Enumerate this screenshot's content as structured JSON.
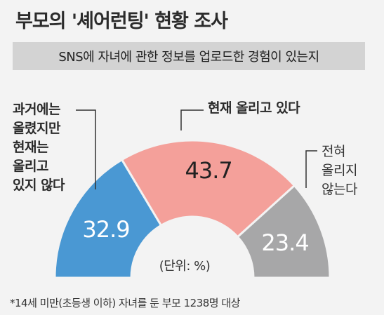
{
  "title": "부모의 '셰어런팅' 현황 조사",
  "subtitle": "SNS에 자녀에 관한 정보를 업로드한 경험이 있는지",
  "unit_note": "(단위: %)",
  "footnote": "*14세 미만(초등생 이하) 자녀를 둔 부모 1238명 대상",
  "colors": {
    "blue": "#4a98d3",
    "pink": "#f4a09a",
    "gray": "#a7a7a8",
    "bg": "#f3f3f3"
  },
  "chart_data": {
    "type": "pie",
    "title": "부모의 '셰어런팅' 현황 조사",
    "subtitle": "SNS에 자녀에 관한 정보를 업로드한 경험이 있는지",
    "unit": "%",
    "slices": [
      {
        "label_lines": [
          "과거에는",
          "올렸지만",
          "현재는",
          "올리고",
          "있지 않다"
        ],
        "value": 32.9,
        "value_label": "32.9",
        "color": "#4a98d3"
      },
      {
        "label_lines": [
          "현재 올리고 있다"
        ],
        "value": 43.7,
        "value_label": "43.7",
        "color": "#f4a09a"
      },
      {
        "label_lines": [
          "전혀",
          "올리지",
          "않는다"
        ],
        "value": 23.4,
        "value_label": "23.4",
        "color": "#a7a7a8"
      }
    ]
  }
}
